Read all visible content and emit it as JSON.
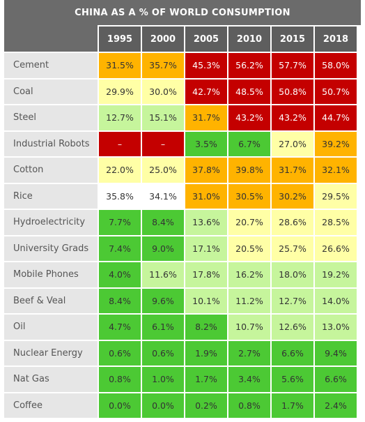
{
  "colors": {
    "red": "#c40000",
    "orange": "#ffb300",
    "light_yellow": "#ffffa6",
    "light_green": "#c6f59c",
    "green": "#4cc934",
    "white": "#ffffff",
    "header": "#5e5e5e",
    "label_bg": "#e6e6e6"
  },
  "chart_data": {
    "type": "table",
    "title": "CHINA AS A % OF WORLD CONSUMPTION",
    "columns": [
      "1995",
      "2000",
      "2005",
      "2010",
      "2015",
      "2018"
    ],
    "rows": [
      {
        "label": "Cement",
        "values": [
          "31.5%",
          "35.7%",
          "45.3%",
          "56.2%",
          "57.7%",
          "58.0%"
        ],
        "colors": [
          "orange",
          "orange",
          "red",
          "red",
          "red",
          "red"
        ]
      },
      {
        "label": "Coal",
        "values": [
          "29.9%",
          "30.0%",
          "42.7%",
          "48.5%",
          "50.8%",
          "50.7%"
        ],
        "colors": [
          "light_yellow",
          "light_yellow",
          "red",
          "red",
          "red",
          "red"
        ]
      },
      {
        "label": "Steel",
        "values": [
          "12.7%",
          "15.1%",
          "31.7%",
          "43.2%",
          "43.2%",
          "44.7%"
        ],
        "colors": [
          "light_green",
          "light_green",
          "orange",
          "red",
          "red",
          "red"
        ]
      },
      {
        "label": "Industrial Robots",
        "values": [
          "–",
          "–",
          "3.5%",
          "6.7%",
          "27.0%",
          "39.2%"
        ],
        "colors": [
          "red",
          "red",
          "green",
          "green",
          "light_yellow",
          "orange"
        ]
      },
      {
        "label": "Cotton",
        "values": [
          "22.0%",
          "25.0%",
          "37.8%",
          "39.8%",
          "31.7%",
          "32.1%"
        ],
        "colors": [
          "light_yellow",
          "light_yellow",
          "orange",
          "orange",
          "orange",
          "orange"
        ]
      },
      {
        "label": "Rice",
        "values": [
          "35.8%",
          "34.1%",
          "31.0%",
          "30.5%",
          "30.2%",
          "29.5%"
        ],
        "colors": [
          "white",
          "white",
          "orange",
          "orange",
          "orange",
          "light_yellow"
        ]
      },
      {
        "label": "Hydroelectricity",
        "values": [
          "7.7%",
          "8.4%",
          "13.6%",
          "20.7%",
          "28.6%",
          "28.5%"
        ],
        "colors": [
          "green",
          "green",
          "light_green",
          "light_yellow",
          "light_yellow",
          "light_yellow"
        ]
      },
      {
        "label": "University Grads",
        "values": [
          "7.4%",
          "9.0%",
          "17.1%",
          "20.5%",
          "25.7%",
          "26.6%"
        ],
        "colors": [
          "green",
          "green",
          "light_green",
          "light_yellow",
          "light_yellow",
          "light_yellow"
        ]
      },
      {
        "label": "Mobile Phones",
        "values": [
          "4.0%",
          "11.6%",
          "17.8%",
          "16.2%",
          "18.0%",
          "19.2%"
        ],
        "colors": [
          "green",
          "light_green",
          "light_green",
          "light_green",
          "light_green",
          "light_green"
        ]
      },
      {
        "label": "Beef & Veal",
        "values": [
          "8.4%",
          "9.6%",
          "10.1%",
          "11.2%",
          "12.7%",
          "14.0%"
        ],
        "colors": [
          "green",
          "green",
          "light_green",
          "light_green",
          "light_green",
          "light_green"
        ]
      },
      {
        "label": "Oil",
        "values": [
          "4.7%",
          "6.1%",
          "8.2%",
          "10.7%",
          "12.6%",
          "13.0%"
        ],
        "colors": [
          "green",
          "green",
          "green",
          "light_green",
          "light_green",
          "light_green"
        ]
      },
      {
        "label": "Nuclear Energy",
        "values": [
          "0.6%",
          "0.6%",
          "1.9%",
          "2.7%",
          "6.6%",
          "9.4%"
        ],
        "colors": [
          "green",
          "green",
          "green",
          "green",
          "green",
          "green"
        ]
      },
      {
        "label": "Nat Gas",
        "values": [
          "0.8%",
          "1.0%",
          "1.7%",
          "3.4%",
          "5.6%",
          "6.6%"
        ],
        "colors": [
          "green",
          "green",
          "green",
          "green",
          "green",
          "green"
        ]
      },
      {
        "label": "Coffee",
        "values": [
          "0.0%",
          "0.0%",
          "0.2%",
          "0.8%",
          "1.7%",
          "2.4%"
        ],
        "colors": [
          "green",
          "green",
          "green",
          "green",
          "green",
          "green"
        ]
      }
    ]
  }
}
